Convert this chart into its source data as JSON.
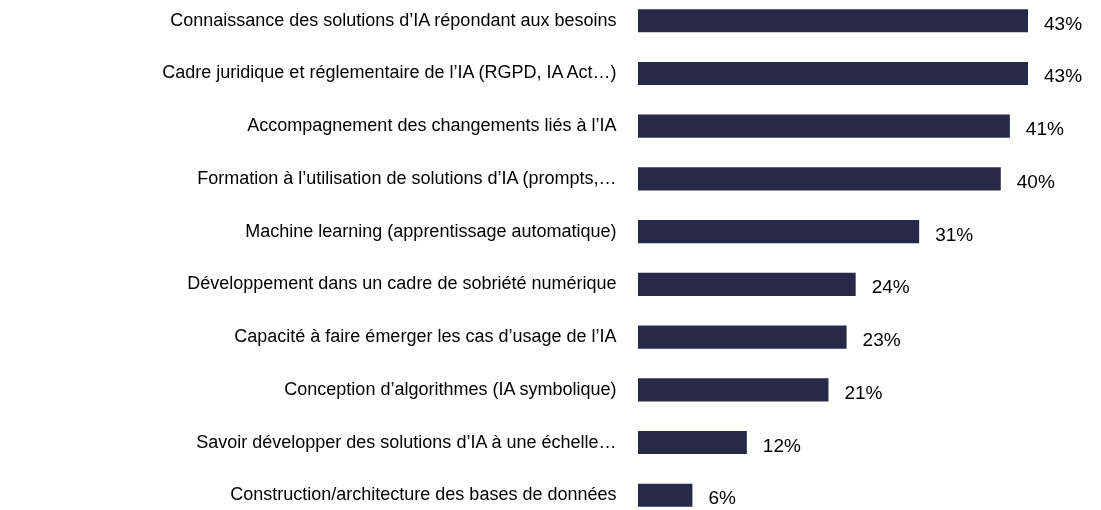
{
  "chart_data": {
    "type": "bar",
    "orientation": "horizontal",
    "relative": false,
    "categories": [
      "Connaissance des solutions d’IA répondant aux besoins",
      "Cadre juridique et réglementaire de l’IA (RGPD, IA Act…)",
      "Accompagnement des changements liés à l’IA",
      "Formation à l’utilisation de solutions d’IA (prompts,…",
      "Machine learning (apprentissage automatique)",
      "Développement dans un cadre de sobriété numérique",
      "Capacité à faire émerger les cas d’usage de l’IA",
      "Conception d’algorithmes (IA symbolique)",
      "Savoir développer des solutions d’IA à une échelle…",
      "Construction/architecture des bases de données"
    ],
    "values": [
      43,
      43,
      41,
      40,
      31,
      24,
      23,
      21,
      12,
      6
    ],
    "value_labels": [
      "43%",
      "43%",
      "41%",
      "40%",
      "31%",
      "24%",
      "23%",
      "21%",
      "12%",
      "6%"
    ],
    "color": "#262a48"
  }
}
